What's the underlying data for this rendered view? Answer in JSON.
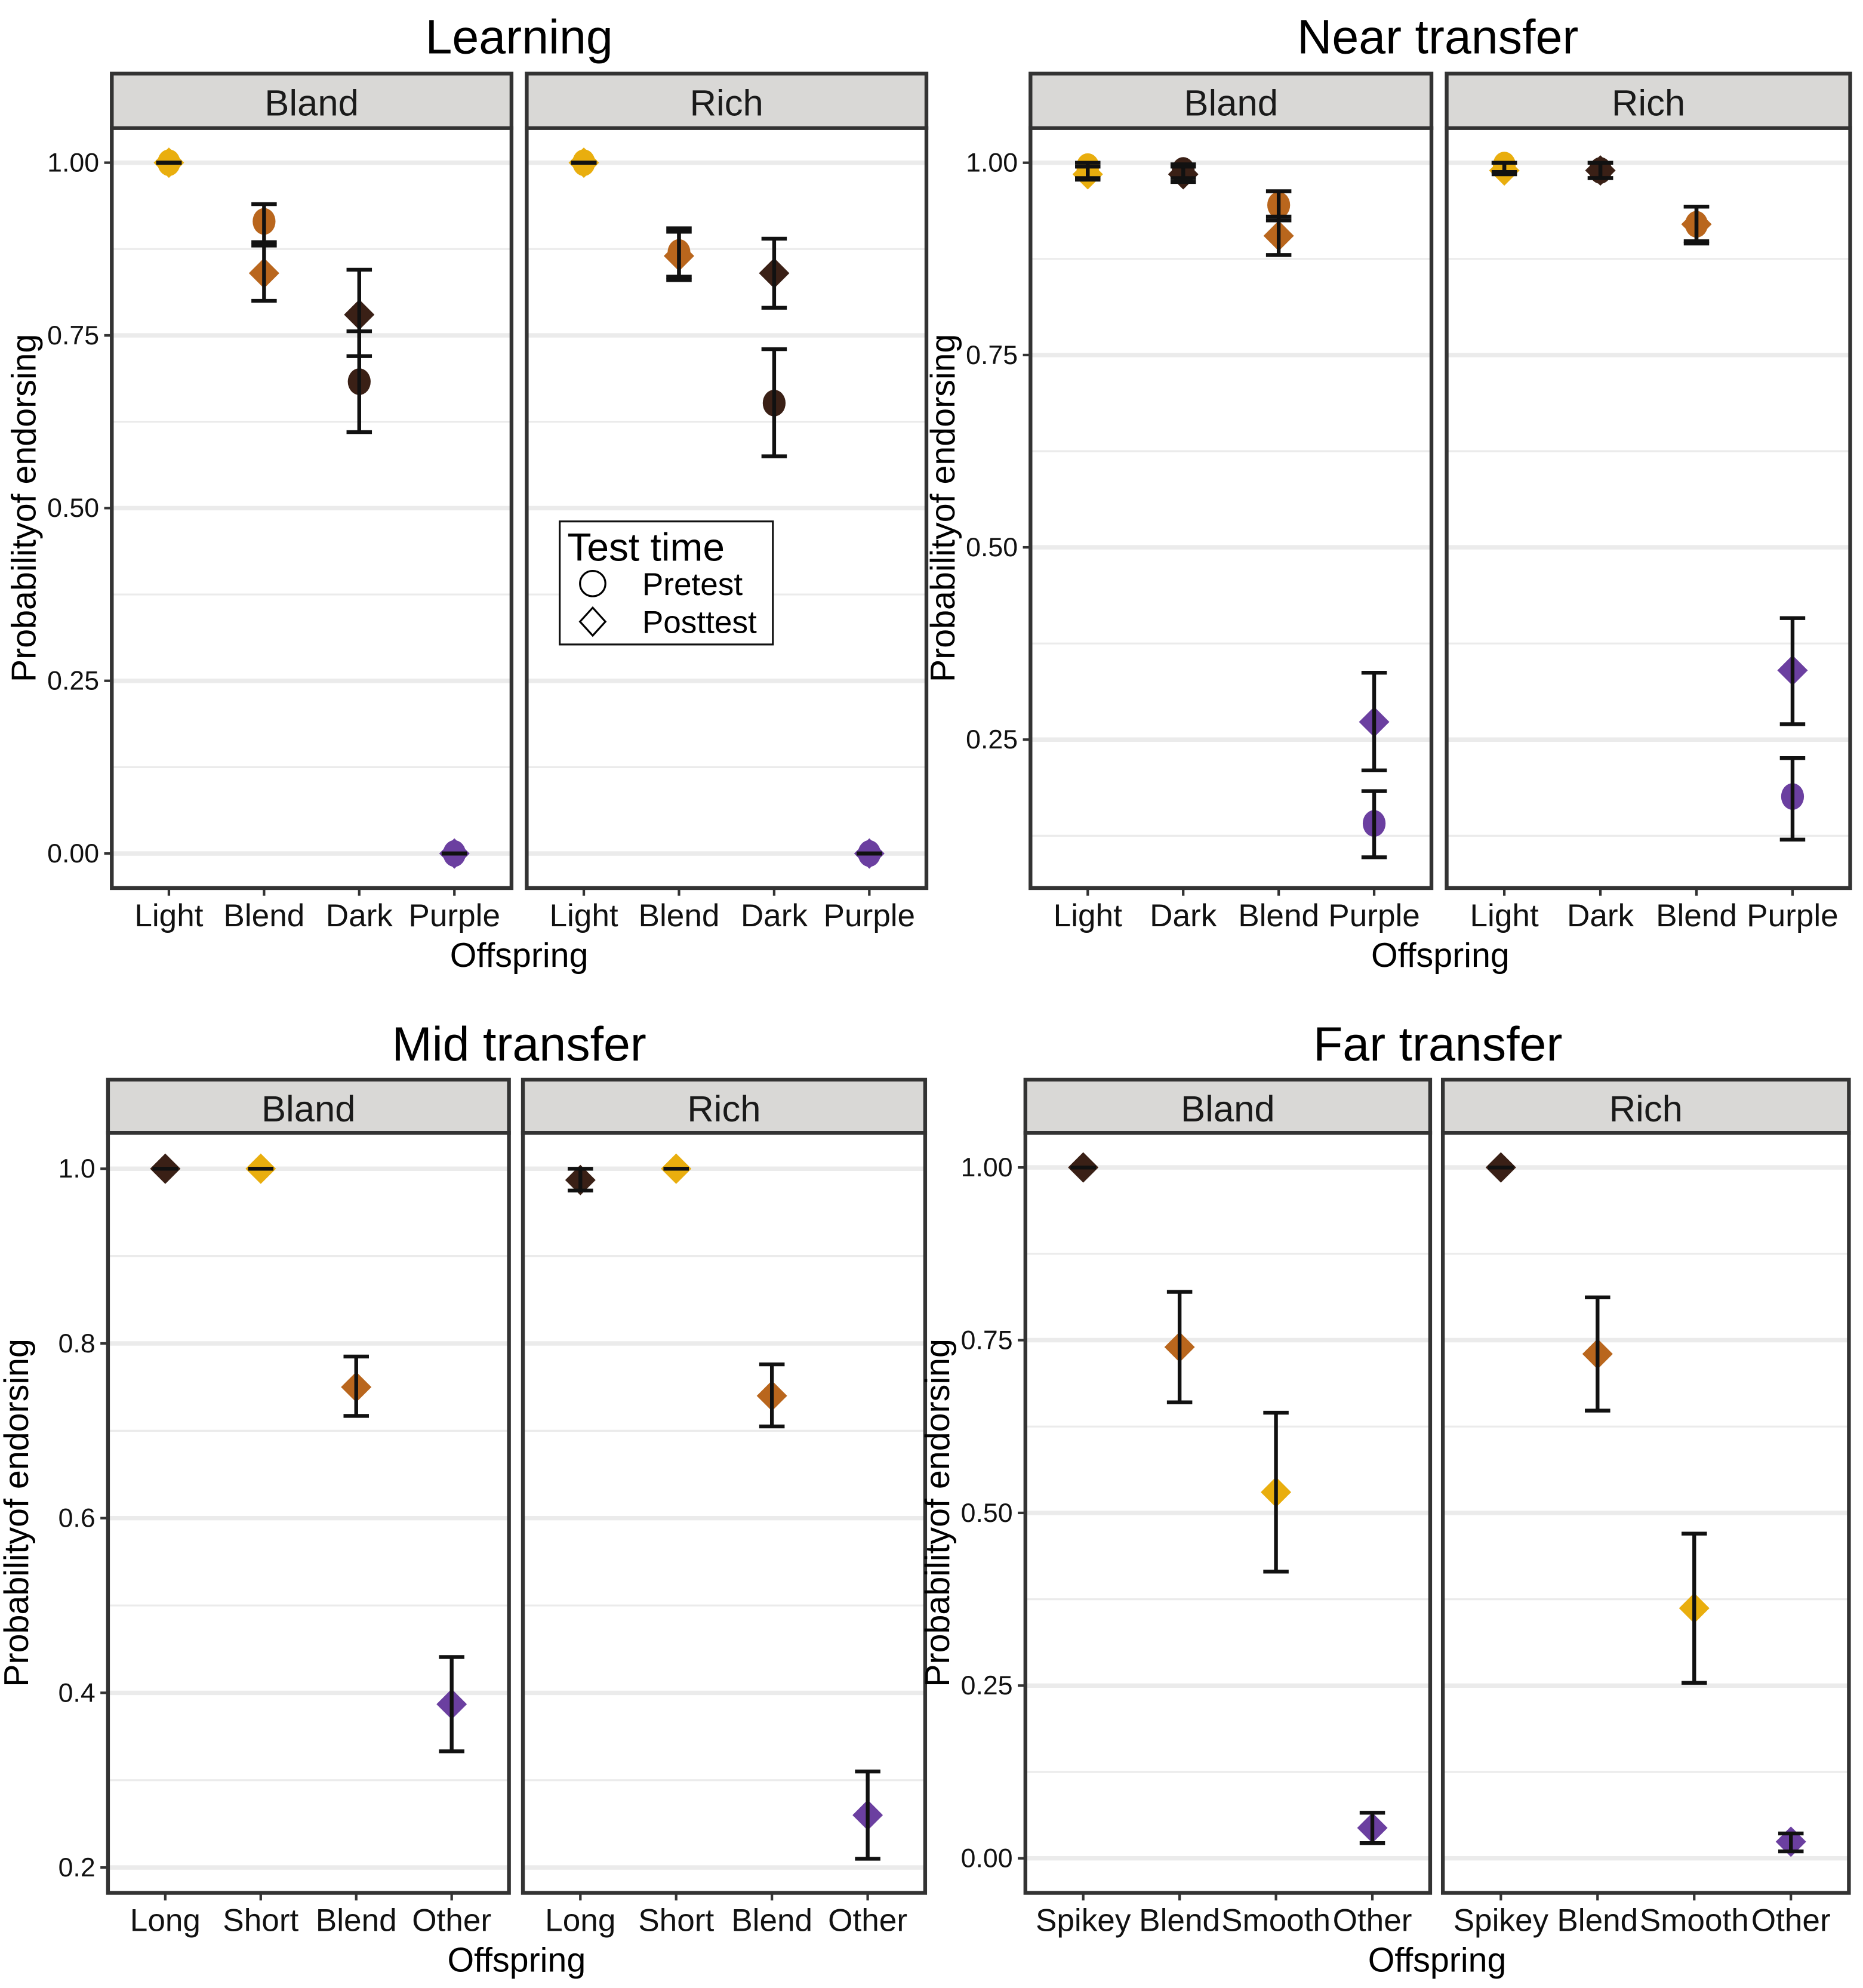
{
  "colors": {
    "Light": "#E9AE0E",
    "Short": "#E9AE0E",
    "Smooth": "#E9AE0E",
    "Blend": "#B9661D",
    "Dark": "#3A2016",
    "Long": "#3A2016",
    "Spikey": "#3A2016",
    "Purple": "#6B3FA0",
    "Other": "#6B3FA0"
  },
  "legend": {
    "title": "Test time",
    "items": [
      "Pretest",
      "Posttest"
    ]
  },
  "chart_data": [
    {
      "type": "scatter",
      "title": "Learning",
      "xlabel": "Offspring",
      "ylabel": "Probabilityof endorsing",
      "ylim": [
        -0.05,
        1.05
      ],
      "yticks": [
        "0.00",
        "0.25",
        "0.50",
        "0.75",
        "1.00"
      ],
      "ytick_values": [
        0,
        0.25,
        0.5,
        0.75,
        1
      ],
      "categories": [
        "Light",
        "Blend",
        "Dark",
        "Purple"
      ],
      "facets": [
        {
          "name": "Bland",
          "points": [
            {
              "cat": "Light",
              "time": "Pretest",
              "y": 1.0,
              "lo": 1.0,
              "hi": 1.0
            },
            {
              "cat": "Light",
              "time": "Posttest",
              "y": 1.0,
              "lo": 1.0,
              "hi": 1.0
            },
            {
              "cat": "Blend",
              "time": "Pretest",
              "y": 0.915,
              "lo": 0.885,
              "hi": 0.94
            },
            {
              "cat": "Blend",
              "time": "Posttest",
              "y": 0.84,
              "lo": 0.8,
              "hi": 0.88
            },
            {
              "cat": "Dark",
              "time": "Pretest",
              "y": 0.683,
              "lo": 0.61,
              "hi": 0.756
            },
            {
              "cat": "Dark",
              "time": "Posttest",
              "y": 0.78,
              "lo": 0.72,
              "hi": 0.845
            },
            {
              "cat": "Purple",
              "time": "Pretest",
              "y": 0.0,
              "lo": 0.0,
              "hi": 0.0
            },
            {
              "cat": "Purple",
              "time": "Posttest",
              "y": 0.0,
              "lo": 0.0,
              "hi": 0.0
            }
          ]
        },
        {
          "name": "Rich",
          "points": [
            {
              "cat": "Light",
              "time": "Pretest",
              "y": 1.0,
              "lo": 1.0,
              "hi": 1.0
            },
            {
              "cat": "Light",
              "time": "Posttest",
              "y": 1.0,
              "lo": 1.0,
              "hi": 1.0
            },
            {
              "cat": "Blend",
              "time": "Pretest",
              "y": 0.87,
              "lo": 0.835,
              "hi": 0.905
            },
            {
              "cat": "Blend",
              "time": "Posttest",
              "y": 0.865,
              "lo": 0.83,
              "hi": 0.9
            },
            {
              "cat": "Dark",
              "time": "Pretest",
              "y": 0.652,
              "lo": 0.575,
              "hi": 0.73
            },
            {
              "cat": "Dark",
              "time": "Posttest",
              "y": 0.84,
              "lo": 0.79,
              "hi": 0.89
            },
            {
              "cat": "Purple",
              "time": "Pretest",
              "y": 0.0,
              "lo": 0.0,
              "hi": 0.0
            },
            {
              "cat": "Purple",
              "time": "Posttest",
              "y": 0.0,
              "lo": 0.0,
              "hi": 0.0
            }
          ]
        }
      ]
    },
    {
      "type": "scatter",
      "title": "Near transfer",
      "xlabel": "Offspring",
      "ylabel": "Probabilityof endorsing",
      "ylim": [
        0.057,
        1.045
      ],
      "yticks": [
        "0.25",
        "0.50",
        "0.75",
        "1.00"
      ],
      "ytick_values": [
        0.25,
        0.5,
        0.75,
        1
      ],
      "categories": [
        "Light",
        "Dark",
        "Blend",
        "Purple"
      ],
      "facets": [
        {
          "name": "Bland",
          "points": [
            {
              "cat": "Light",
              "time": "Pretest",
              "y": 0.995,
              "lo": 0.98,
              "hi": 1.0
            },
            {
              "cat": "Light",
              "time": "Posttest",
              "y": 0.985,
              "lo": 0.978,
              "hi": 0.995
            },
            {
              "cat": "Dark",
              "time": "Pretest",
              "y": 0.99,
              "lo": 0.98,
              "hi": 0.998
            },
            {
              "cat": "Dark",
              "time": "Posttest",
              "y": 0.985,
              "lo": 0.975,
              "hi": 0.995
            },
            {
              "cat": "Blend",
              "time": "Pretest",
              "y": 0.945,
              "lo": 0.925,
              "hi": 0.963
            },
            {
              "cat": "Blend",
              "time": "Posttest",
              "y": 0.905,
              "lo": 0.88,
              "hi": 0.93
            },
            {
              "cat": "Purple",
              "time": "Pretest",
              "y": 0.141,
              "lo": 0.097,
              "hi": 0.183
            },
            {
              "cat": "Purple",
              "time": "Posttest",
              "y": 0.273,
              "lo": 0.21,
              "hi": 0.337
            }
          ]
        },
        {
          "name": "Rich",
          "points": [
            {
              "cat": "Light",
              "time": "Pretest",
              "y": 0.997,
              "lo": 0.988,
              "hi": 1.0
            },
            {
              "cat": "Light",
              "time": "Posttest",
              "y": 0.99,
              "lo": 0.985,
              "hi": 1.0
            },
            {
              "cat": "Dark",
              "time": "Pretest",
              "y": 0.99,
              "lo": 0.98,
              "hi": 1.0
            },
            {
              "cat": "Dark",
              "time": "Posttest",
              "y": 0.99,
              "lo": 0.98,
              "hi": 1.0
            },
            {
              "cat": "Blend",
              "time": "Pretest",
              "y": 0.92,
              "lo": 0.895,
              "hi": 0.943
            },
            {
              "cat": "Blend",
              "time": "Posttest",
              "y": 0.92,
              "lo": 0.898,
              "hi": 0.943
            },
            {
              "cat": "Purple",
              "time": "Pretest",
              "y": 0.176,
              "lo": 0.12,
              "hi": 0.226
            },
            {
              "cat": "Purple",
              "time": "Posttest",
              "y": 0.34,
              "lo": 0.27,
              "hi": 0.408
            }
          ]
        }
      ]
    },
    {
      "type": "scatter",
      "title": "Mid transfer",
      "xlabel": "Offspring",
      "ylabel": "Probabilityof endorsing",
      "ylim": [
        0.171,
        1.041
      ],
      "yticks": [
        "0.2",
        "0.4",
        "0.6",
        "0.8",
        "1.0"
      ],
      "ytick_values": [
        0.2,
        0.4,
        0.6,
        0.8,
        1.0
      ],
      "categories": [
        "Long",
        "Short",
        "Blend",
        "Other"
      ],
      "facets": [
        {
          "name": "Bland",
          "points": [
            {
              "cat": "Long",
              "time": "Posttest",
              "y": 1.0,
              "lo": 1.0,
              "hi": 1.0
            },
            {
              "cat": "Short",
              "time": "Posttest",
              "y": 1.0,
              "lo": 1.0,
              "hi": 1.0
            },
            {
              "cat": "Blend",
              "time": "Posttest",
              "y": 0.75,
              "lo": 0.717,
              "hi": 0.785
            },
            {
              "cat": "Other",
              "time": "Posttest",
              "y": 0.387,
              "lo": 0.333,
              "hi": 0.441
            }
          ]
        },
        {
          "name": "Rich",
          "points": [
            {
              "cat": "Long",
              "time": "Posttest",
              "y": 0.987,
              "lo": 0.975,
              "hi": 1.0
            },
            {
              "cat": "Short",
              "time": "Posttest",
              "y": 1.0,
              "lo": 1.0,
              "hi": 1.0
            },
            {
              "cat": "Blend",
              "time": "Posttest",
              "y": 0.74,
              "lo": 0.705,
              "hi": 0.776
            },
            {
              "cat": "Other",
              "time": "Posttest",
              "y": 0.26,
              "lo": 0.21,
              "hi": 0.31
            }
          ]
        }
      ]
    },
    {
      "type": "scatter",
      "title": "Far transfer",
      "xlabel": "Offspring",
      "ylabel": "Probabilityof endorsing",
      "ylim": [
        -0.05,
        1.05
      ],
      "yticks": [
        "0.00",
        "0.25",
        "0.50",
        "0.75",
        "1.00"
      ],
      "ytick_values": [
        0,
        0.25,
        0.5,
        0.75,
        1
      ],
      "categories": [
        "Spikey",
        "Blend",
        "Smooth",
        "Other"
      ],
      "facets": [
        {
          "name": "Bland",
          "points": [
            {
              "cat": "Spikey",
              "time": "Posttest",
              "y": 1.0,
              "lo": 1.0,
              "hi": 1.0
            },
            {
              "cat": "Blend",
              "time": "Posttest",
              "y": 0.74,
              "lo": 0.66,
              "hi": 0.82
            },
            {
              "cat": "Smooth",
              "time": "Posttest",
              "y": 0.53,
              "lo": 0.415,
              "hi": 0.645
            },
            {
              "cat": "Other",
              "time": "Posttest",
              "y": 0.044,
              "lo": 0.022,
              "hi": 0.066
            }
          ]
        },
        {
          "name": "Rich",
          "points": [
            {
              "cat": "Spikey",
              "time": "Posttest",
              "y": 1.0,
              "lo": 1.0,
              "hi": 1.0
            },
            {
              "cat": "Blend",
              "time": "Posttest",
              "y": 0.73,
              "lo": 0.648,
              "hi": 0.812
            },
            {
              "cat": "Smooth",
              "time": "Posttest",
              "y": 0.362,
              "lo": 0.254,
              "hi": 0.47
            },
            {
              "cat": "Other",
              "time": "Posttest",
              "y": 0.024,
              "lo": 0.01,
              "hi": 0.036
            }
          ]
        }
      ]
    }
  ]
}
